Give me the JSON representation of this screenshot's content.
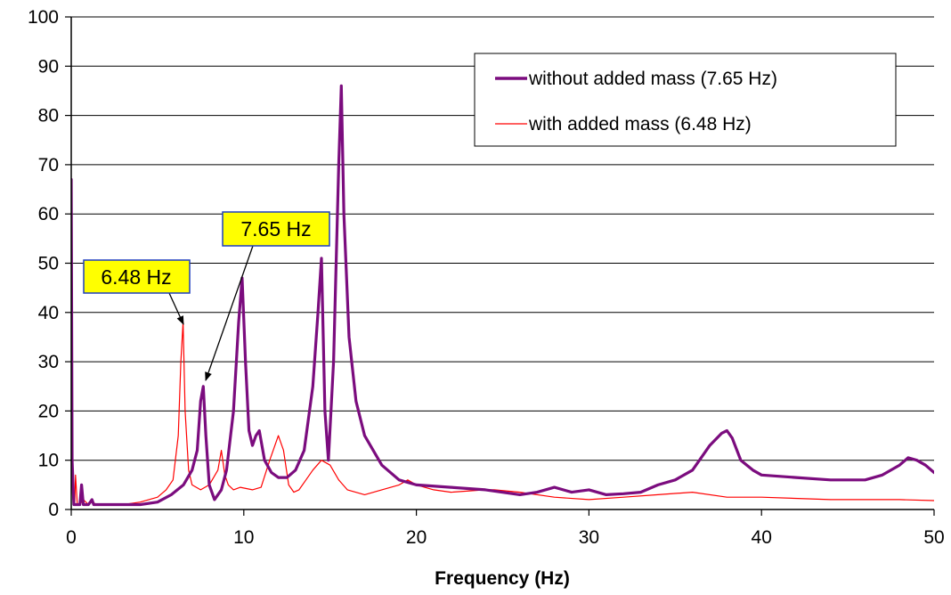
{
  "chart_data": {
    "type": "line",
    "xlabel": "Frequency (Hz)",
    "ylabel": "",
    "xlim": [
      0,
      50
    ],
    "ylim": [
      0,
      100
    ],
    "xticks": [
      0,
      10,
      20,
      30,
      40,
      50
    ],
    "yticks": [
      0,
      10,
      20,
      30,
      40,
      50,
      60,
      70,
      80,
      90,
      100
    ],
    "grid": "horizontal",
    "legend_position": "top-right",
    "series": [
      {
        "name": "without added mass (7.65 Hz)",
        "color": "#7B0C7E",
        "x": [
          0,
          0.05,
          0.15,
          0.3,
          0.5,
          0.6,
          0.7,
          1.0,
          1.2,
          1.3,
          1.5,
          2.0,
          3.0,
          4.0,
          5.0,
          5.8,
          6.5,
          7.0,
          7.3,
          7.5,
          7.65,
          7.8,
          8.0,
          8.3,
          8.7,
          9.0,
          9.4,
          9.7,
          9.9,
          10.1,
          10.3,
          10.5,
          10.7,
          10.9,
          11.2,
          11.6,
          12.0,
          12.5,
          13.0,
          13.5,
          14.0,
          14.3,
          14.5,
          14.7,
          14.9,
          15.2,
          15.5,
          15.65,
          15.8,
          16.1,
          16.5,
          17.0,
          18.0,
          19.0,
          20.0,
          22.0,
          24.0,
          26.0,
          27.0,
          28.0,
          29.0,
          30.0,
          31.0,
          32.0,
          33.0,
          34.0,
          35.0,
          36.0,
          37.0,
          37.7,
          38.0,
          38.3,
          38.8,
          39.5,
          40.0,
          42.0,
          44.0,
          46.0,
          47.0,
          48.0,
          48.5,
          49.0,
          49.5,
          50.0
        ],
        "y": [
          67,
          10,
          1,
          1,
          1,
          5,
          1,
          1,
          2,
          1,
          1,
          1,
          1,
          1,
          1.5,
          3,
          5,
          8,
          12,
          22,
          25,
          15,
          5,
          2,
          4,
          8,
          20,
          38,
          47,
          30,
          16,
          13,
          15,
          16,
          10,
          7.5,
          6.5,
          6.5,
          8,
          12,
          25,
          40,
          51,
          20,
          10,
          30,
          70,
          86,
          60,
          35,
          22,
          15,
          9,
          6,
          5,
          4.5,
          4,
          3,
          3.5,
          4.5,
          3.5,
          4,
          3,
          3.2,
          3.5,
          5,
          6,
          8,
          13,
          15.5,
          16,
          14.5,
          10,
          8,
          7,
          6.5,
          6,
          6,
          7,
          9,
          10.5,
          10,
          9,
          7.5
        ]
      },
      {
        "name": "with added mass (6.48 Hz)",
        "color": "#FF0000",
        "x": [
          0,
          0.05,
          0.1,
          0.2,
          0.25,
          0.35,
          0.5,
          0.7,
          1.0,
          1.2,
          1.5,
          2.0,
          3.0,
          4.0,
          5.0,
          5.5,
          5.9,
          6.2,
          6.35,
          6.48,
          6.6,
          6.8,
          7.0,
          7.5,
          8.0,
          8.5,
          8.7,
          8.9,
          9.1,
          9.4,
          9.8,
          10.5,
          11.0,
          11.5,
          12.0,
          12.3,
          12.6,
          12.9,
          13.2,
          13.6,
          14.0,
          14.5,
          15.0,
          15.5,
          16.0,
          17.0,
          18.0,
          19.0,
          19.5,
          20.0,
          21.0,
          22.0,
          24.0,
          24.5,
          26.0,
          28.0,
          30.0,
          32.0,
          34.0,
          36.0,
          38.0,
          40.0,
          44.0,
          48.0,
          50.0
        ],
        "y": [
          3,
          15,
          2,
          1,
          7,
          1,
          1,
          2,
          1,
          1.5,
          1,
          1,
          1,
          1.5,
          2.5,
          4,
          6,
          15,
          30,
          38,
          20,
          8,
          5,
          4,
          5,
          8,
          12,
          7,
          5,
          4,
          4.5,
          4,
          4.5,
          10,
          15,
          12,
          5,
          3.5,
          4,
          6,
          8,
          10,
          9,
          6,
          4,
          3,
          4,
          5,
          6,
          5,
          4,
          3.5,
          4,
          4,
          3.5,
          2.5,
          2,
          2.5,
          3,
          3.5,
          2.5,
          2.5,
          2,
          2,
          1.8
        ]
      }
    ],
    "annotations": [
      {
        "text": "6.48 Hz",
        "points_to": [
          6.48,
          38
        ]
      },
      {
        "text": "7.65 Hz",
        "points_to": [
          7.65,
          25
        ]
      }
    ]
  }
}
